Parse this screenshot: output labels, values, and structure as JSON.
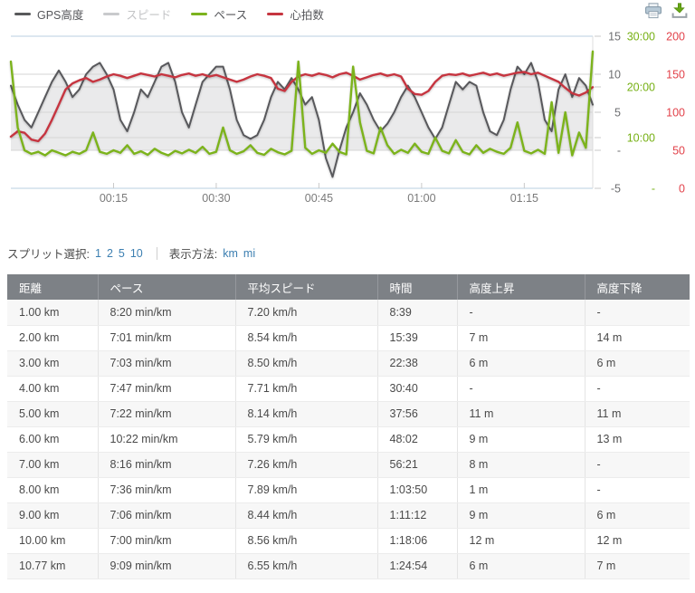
{
  "legend": {
    "items": [
      {
        "label": "GPS高度",
        "color": "#58595b",
        "text_color": "#55565a",
        "active": true
      },
      {
        "label": "スピード",
        "color": "#c9cacc",
        "text_color": "#c3c4c6",
        "active": false
      },
      {
        "label": "ペース",
        "color": "#7cb31e",
        "text_color": "#55565a",
        "active": true
      },
      {
        "label": "心拍数",
        "color": "#c63540",
        "text_color": "#55565a",
        "active": true
      }
    ]
  },
  "toolbar": {
    "print_icon": "printer-icon",
    "export_icon": "download-icon"
  },
  "chart_data": {
    "type": "line",
    "x_axis": {
      "unit": "elapsed time h:mm",
      "t_max": 85,
      "ticks": [
        {
          "t": 15,
          "label": "00:15"
        },
        {
          "t": 30,
          "label": "00:30"
        },
        {
          "t": 45,
          "label": "00:45"
        },
        {
          "t": 60,
          "label": "01:00"
        },
        {
          "t": 75,
          "label": "01:15"
        }
      ]
    },
    "y_axes": [
      {
        "id": "elevation",
        "range": [
          -5,
          15
        ],
        "label_color": "#6d6e70",
        "ticks": [
          {
            "v": 15,
            "label": "15"
          },
          {
            "v": 10,
            "label": "10"
          },
          {
            "v": 5,
            "label": "5"
          },
          {
            "v": 0,
            "label": "-"
          },
          {
            "v": -5,
            "label": "-5"
          }
        ]
      },
      {
        "id": "pace",
        "range": [
          0,
          30
        ],
        "label_color": "#76b014",
        "ticks": [
          {
            "v": 30,
            "label": "30:00"
          },
          {
            "v": 20,
            "label": "20:00"
          },
          {
            "v": 10,
            "label": "10:00"
          },
          {
            "v": 0,
            "label": "-"
          }
        ]
      },
      {
        "id": "heart_rate",
        "range": [
          0,
          200
        ],
        "label_color": "#e2424a",
        "ticks": [
          {
            "v": 200,
            "label": "200"
          },
          {
            "v": 150,
            "label": "150"
          },
          {
            "v": 100,
            "label": "100"
          },
          {
            "v": 50,
            "label": "50"
          },
          {
            "v": 0,
            "label": "0"
          }
        ]
      }
    ],
    "series": [
      {
        "name": "GPS高度",
        "axis": "elevation",
        "color": "#58595b",
        "width": 2,
        "area": true,
        "baseline": 0,
        "fill": "rgba(105,107,112,0.14)",
        "t_step": 1,
        "values": [
          8.5,
          6,
          4,
          3,
          5,
          7,
          9,
          10.5,
          9,
          7,
          8,
          10,
          11,
          11.5,
          10,
          8,
          4,
          2.5,
          5,
          8,
          7,
          9,
          11,
          11.5,
          9,
          5,
          3,
          6,
          9,
          10,
          11,
          11,
          8,
          4,
          2,
          1.5,
          2,
          4,
          7,
          9,
          8,
          9.5,
          8,
          6,
          7,
          4,
          -1,
          -3.5,
          0,
          3,
          5,
          7.5,
          6,
          4,
          2.5,
          3.5,
          5,
          7,
          8.5,
          7,
          5,
          3,
          1.5,
          3,
          6,
          9,
          8,
          9,
          8.5,
          5,
          2.5,
          2,
          4,
          8,
          11,
          10,
          11.5,
          9,
          4,
          2.5,
          8,
          10,
          7,
          9.5,
          8.5,
          6
        ]
      },
      {
        "name": "心拍数",
        "axis": "heart_rate",
        "color": "#c63540",
        "width": 2.4,
        "t_step": 1,
        "values": [
          68,
          75,
          73,
          64,
          62,
          72,
          90,
          110,
          130,
          138,
          142,
          145,
          140,
          143,
          147,
          150,
          148,
          145,
          148,
          151,
          149,
          147,
          150,
          148,
          146,
          149,
          151,
          148,
          150,
          147,
          149,
          146,
          143,
          140,
          143,
          147,
          150,
          148,
          145,
          131,
          128,
          140,
          147,
          150,
          148,
          151,
          149,
          146,
          150,
          152,
          148,
          143,
          146,
          149,
          151,
          148,
          150,
          147,
          131,
          124,
          123,
          128,
          140,
          148,
          150,
          149,
          151,
          148,
          150,
          152,
          149,
          151,
          148,
          150,
          152,
          153,
          150,
          152,
          148,
          144,
          140,
          132,
          125,
          122,
          126,
          133
        ]
      },
      {
        "name": "ペース",
        "axis": "pace",
        "color": "#7cb31e",
        "width": 2.4,
        "t_step": 1,
        "values": [
          25,
          12,
          7.5,
          6.8,
          7.2,
          6.5,
          7.5,
          7,
          6.5,
          7.2,
          6.8,
          7.5,
          11,
          7.2,
          6.8,
          7.5,
          7,
          8.5,
          6.8,
          7.3,
          6.6,
          7.8,
          7,
          6.5,
          7.4,
          6.9,
          7.6,
          7,
          8.2,
          6.8,
          7.2,
          12,
          7.5,
          6.8,
          7.3,
          8.5,
          7,
          6.6,
          7.8,
          7.1,
          6.7,
          7.4,
          25,
          8,
          6.8,
          7.5,
          7,
          8.8,
          7.2,
          6.7,
          24,
          13,
          7.4,
          6.9,
          12,
          8.5,
          6.8,
          7.6,
          7,
          8.8,
          7.2,
          6.8,
          10,
          7.4,
          6.9,
          9.5,
          7.2,
          6.7,
          8.5,
          7,
          7.8,
          7.2,
          6.8,
          8,
          13,
          7.4,
          6.9,
          7.6,
          6.8,
          17,
          7,
          15,
          6.5,
          11,
          8,
          27
        ]
      }
    ]
  },
  "controls": {
    "split_label": "スプリット選択:",
    "split_options": [
      "1",
      "2",
      "5",
      "10"
    ],
    "unit_label": "表示方法:",
    "unit_options": [
      "km",
      "mi"
    ],
    "link_color": "#3c7fb1"
  },
  "table": {
    "headers": [
      "距離",
      "ペース",
      "平均スピード",
      "時間",
      "高度上昇",
      "高度下降"
    ],
    "column_keys": [
      "distance",
      "pace",
      "avg-speed",
      "time",
      "elevation-gain",
      "elevation-loss"
    ],
    "rows": [
      [
        "1.00 km",
        "8:20 min/km",
        "7.20 km/h",
        "8:39",
        "-",
        "-"
      ],
      [
        "2.00 km",
        "7:01 min/km",
        "8.54 km/h",
        "15:39",
        "7 m",
        "14 m"
      ],
      [
        "3.00 km",
        "7:03 min/km",
        "8.50 km/h",
        "22:38",
        "6 m",
        "6 m"
      ],
      [
        "4.00 km",
        "7:47 min/km",
        "7.71 km/h",
        "30:40",
        "-",
        "-"
      ],
      [
        "5.00 km",
        "7:22 min/km",
        "8.14 km/h",
        "37:56",
        "11 m",
        "11 m"
      ],
      [
        "6.00 km",
        "10:22 min/km",
        "5.79 km/h",
        "48:02",
        "9 m",
        "13 m"
      ],
      [
        "7.00 km",
        "8:16 min/km",
        "7.26 km/h",
        "56:21",
        "8 m",
        "-"
      ],
      [
        "8.00 km",
        "7:36 min/km",
        "7.89 km/h",
        "1:03:50",
        "1 m",
        "-"
      ],
      [
        "9.00 km",
        "7:06 min/km",
        "8.44 km/h",
        "1:11:12",
        "9 m",
        "6 m"
      ],
      [
        "10.00 km",
        "7:00 min/km",
        "8.56 km/h",
        "1:18:06",
        "12 m",
        "12 m"
      ],
      [
        "10.77 km",
        "9:09 min/km",
        "6.55 km/h",
        "1:24:54",
        "6 m",
        "7 m"
      ]
    ]
  }
}
